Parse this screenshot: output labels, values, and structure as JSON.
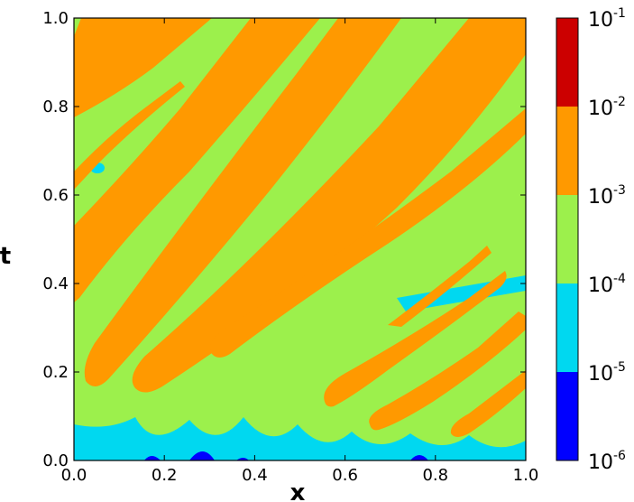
{
  "chart_data": {
    "type": "heatmap",
    "title": "",
    "xlabel": "x",
    "ylabel": "t",
    "xlim": [
      0.0,
      1.0
    ],
    "ylim": [
      0.0,
      1.0
    ],
    "x_ticks": [
      "0.0",
      "0.2",
      "0.4",
      "0.6",
      "0.8",
      "1.0"
    ],
    "y_ticks": [
      "0.0",
      "0.2",
      "0.4",
      "0.6",
      "0.8",
      "1.0"
    ],
    "colorbar": {
      "scale": "log",
      "tick_bases": [
        "10",
        "10",
        "10",
        "10",
        "10",
        "10"
      ],
      "tick_exponents": [
        "-6",
        "-5",
        "-4",
        "-3",
        "-2",
        "-1"
      ],
      "levels": [
        {
          "range": [
            "1e-6",
            "1e-5"
          ],
          "color": "#0000ff"
        },
        {
          "range": [
            "1e-5",
            "1e-4"
          ],
          "color": "#00d8f0"
        },
        {
          "range": [
            "1e-4",
            "1e-3"
          ],
          "color": "#9cf04c"
        },
        {
          "range": [
            "1e-3",
            "1e-2"
          ],
          "color": "#ff9900"
        },
        {
          "range": [
            "1e-2",
            "1e-1"
          ],
          "color": "#cc0000"
        }
      ]
    },
    "field_description": "Banded contour field: diagonal orange (1e-3 to 1e-2) stripes rising from lower-left to upper-right over a green (1e-4 to 1e-3) background, with cyan (1e-5 to 1e-4) and small blue (1e-6 to 1e-5) patches near t = 0."
  }
}
